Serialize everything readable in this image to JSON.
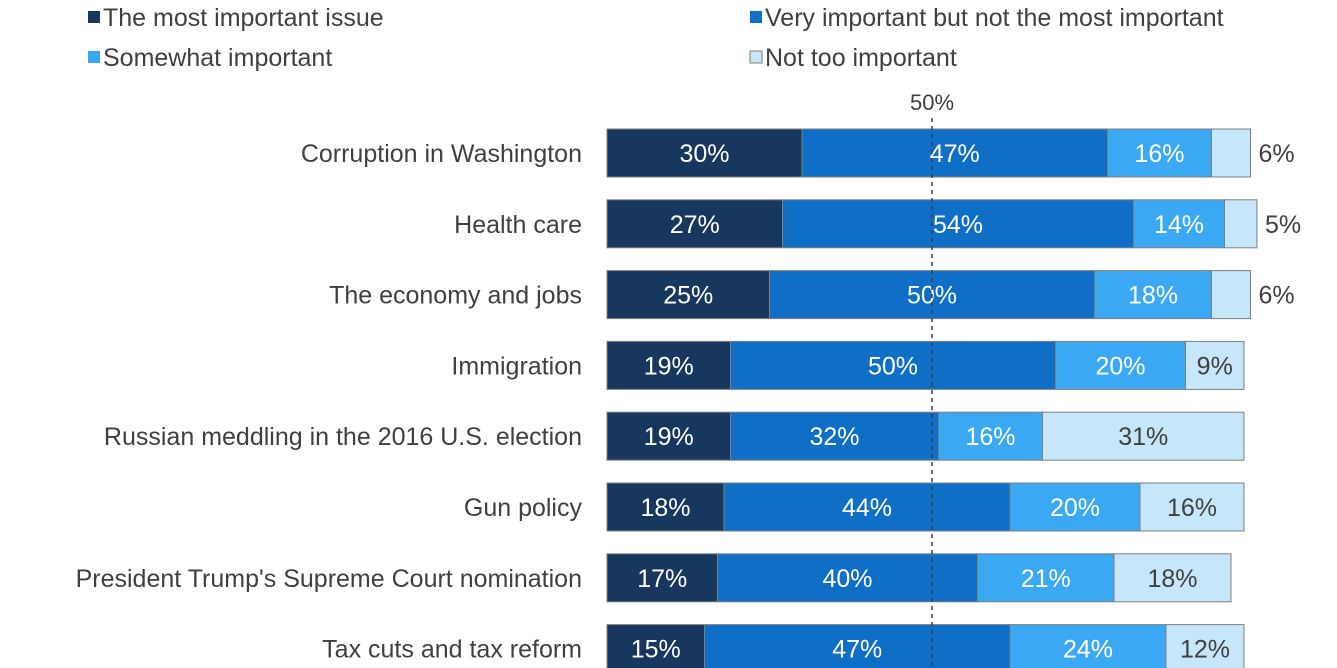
{
  "chart_data": {
    "type": "bar",
    "orientation": "horizontal",
    "stacked": true,
    "title": "",
    "xlabel": "",
    "ylabel": "",
    "xlim": [
      0,
      100
    ],
    "reference_line": {
      "value": 50,
      "label": "50%"
    },
    "legend_position": "top",
    "categories": [
      "Corruption in Washington",
      "Health care",
      "The economy and jobs",
      "Immigration",
      "Russian meddling in the 2016 U.S. election",
      "Gun policy",
      "President Trump's Supreme Court nomination",
      "Tax cuts and tax reform"
    ],
    "series": [
      {
        "name": "The most important issue",
        "color": "#17375e",
        "label_color": "#ffffff",
        "values": [
          30,
          27,
          25,
          19,
          19,
          18,
          17,
          15
        ]
      },
      {
        "name": "Very important but not the most important",
        "color": "#0f6fc6",
        "label_color": "#ffffff",
        "values": [
          47,
          54,
          50,
          50,
          32,
          44,
          40,
          47
        ]
      },
      {
        "name": "Somewhat important",
        "color": "#3ba8f4",
        "label_color": "#ffffff",
        "values": [
          16,
          14,
          18,
          20,
          16,
          20,
          21,
          24
        ]
      },
      {
        "name": "Not too important",
        "color": "#c6e6fa",
        "label_color": "#404040",
        "values": [
          6,
          5,
          6,
          9,
          31,
          16,
          18,
          12
        ]
      }
    ],
    "outside_label_series": 3,
    "outside_label_rows": [
      0,
      1,
      2
    ]
  }
}
